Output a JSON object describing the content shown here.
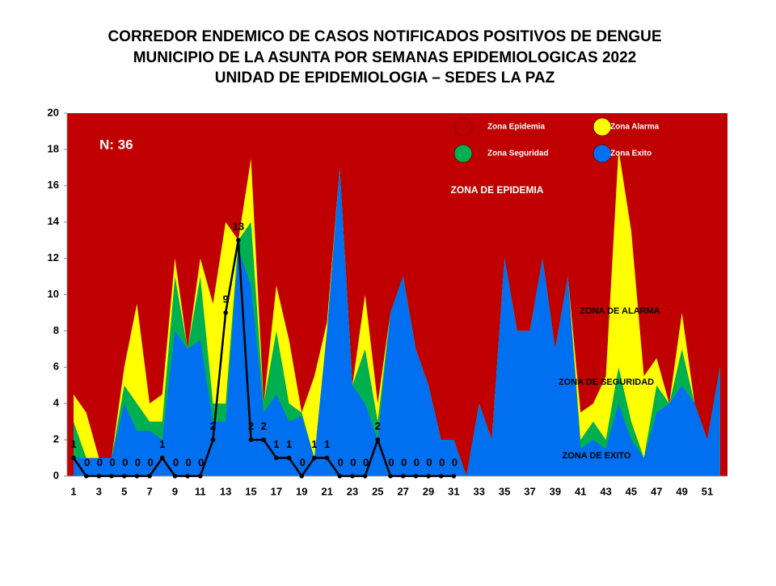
{
  "chart_data": {
    "type": "area",
    "title": [
      "CORREDOR ENDEMICO DE CASOS NOTIFICADOS POSITIVOS DE DENGUE",
      "MUNICIPIO DE LA ASUNTA  POR SEMANAS EPIDEMIOLOGICAS 2022",
      "UNIDAD DE EPIDEMIOLOGIA – SEDES LA PAZ"
    ],
    "annotations": [
      "N: 36",
      "ZONA DE EPIDEMIA",
      "ZONA DE ALARMA",
      "ZONA DE  SEGURIDAD",
      "ZONA DE EXITO"
    ],
    "categories": [
      1,
      null,
      3,
      null,
      5,
      null,
      7,
      null,
      9,
      null,
      11,
      null,
      13,
      null,
      15,
      null,
      17,
      null,
      19,
      null,
      21,
      null,
      23,
      null,
      25,
      null,
      27,
      null,
      29,
      null,
      31,
      null,
      33,
      null,
      35,
      null,
      37,
      null,
      39,
      null,
      41,
      null,
      43,
      null,
      45,
      null,
      47,
      null,
      49,
      null,
      51,
      null
    ],
    "ylim": [
      0,
      20
    ],
    "yticks": [
      0,
      2,
      4,
      6,
      8,
      10,
      12,
      14,
      16,
      18,
      20
    ],
    "zones": [
      {
        "name": "Zona Epidemia",
        "color": "#c00000"
      },
      {
        "name": "Zona Alarma",
        "color": "#ffff00",
        "values": [
          4.5,
          3.5,
          1,
          1,
          6,
          9.5,
          4,
          4.5,
          12,
          7,
          12,
          9.5,
          14,
          13,
          17.5,
          4,
          10.5,
          7.5,
          3.5,
          5.5,
          8.5,
          17,
          5,
          10,
          4,
          9,
          11,
          7,
          5,
          2,
          2,
          0,
          4,
          2,
          12,
          8,
          8,
          12,
          7,
          11,
          3.5,
          4,
          5.5,
          18,
          13.5,
          5.5,
          6.5,
          4,
          9,
          4,
          2,
          6
        ]
      },
      {
        "name": "Zona Seguridad",
        "color": "#00b050",
        "values": [
          3,
          1,
          1,
          1,
          5,
          4,
          3,
          3,
          11,
          7,
          11,
          4,
          4,
          13,
          14,
          4,
          8,
          4,
          3.5,
          1,
          8,
          17,
          5,
          7,
          3,
          9,
          11,
          7,
          5,
          2,
          2,
          0,
          4,
          2,
          12,
          8,
          8,
          12,
          7,
          11,
          2,
          3,
          2,
          6,
          3,
          1,
          5,
          4,
          7,
          4,
          2,
          6
        ]
      },
      {
        "name": "Zona Exito",
        "color": "#0070f0",
        "values": [
          1,
          1,
          1,
          1,
          4,
          2.5,
          2.5,
          2,
          8,
          7,
          7.5,
          3,
          3,
          12.5,
          10.5,
          3.5,
          4.5,
          3,
          3.3,
          1,
          8,
          17,
          5,
          4,
          2,
          9,
          11,
          7,
          5,
          2,
          2,
          0,
          4,
          2,
          12,
          8,
          8,
          12,
          7,
          11,
          1.5,
          2,
          1.5,
          4,
          2,
          1,
          3.5,
          4,
          5,
          4,
          2,
          6
        ]
      }
    ],
    "cases": {
      "color": "#000000",
      "values": [
        1,
        0,
        0,
        0,
        0,
        0,
        0,
        1,
        0,
        0,
        0,
        2,
        9,
        13,
        2,
        2,
        1,
        1,
        0,
        1,
        1,
        0,
        0,
        0,
        2,
        0,
        0,
        0,
        0,
        0,
        0
      ]
    }
  }
}
